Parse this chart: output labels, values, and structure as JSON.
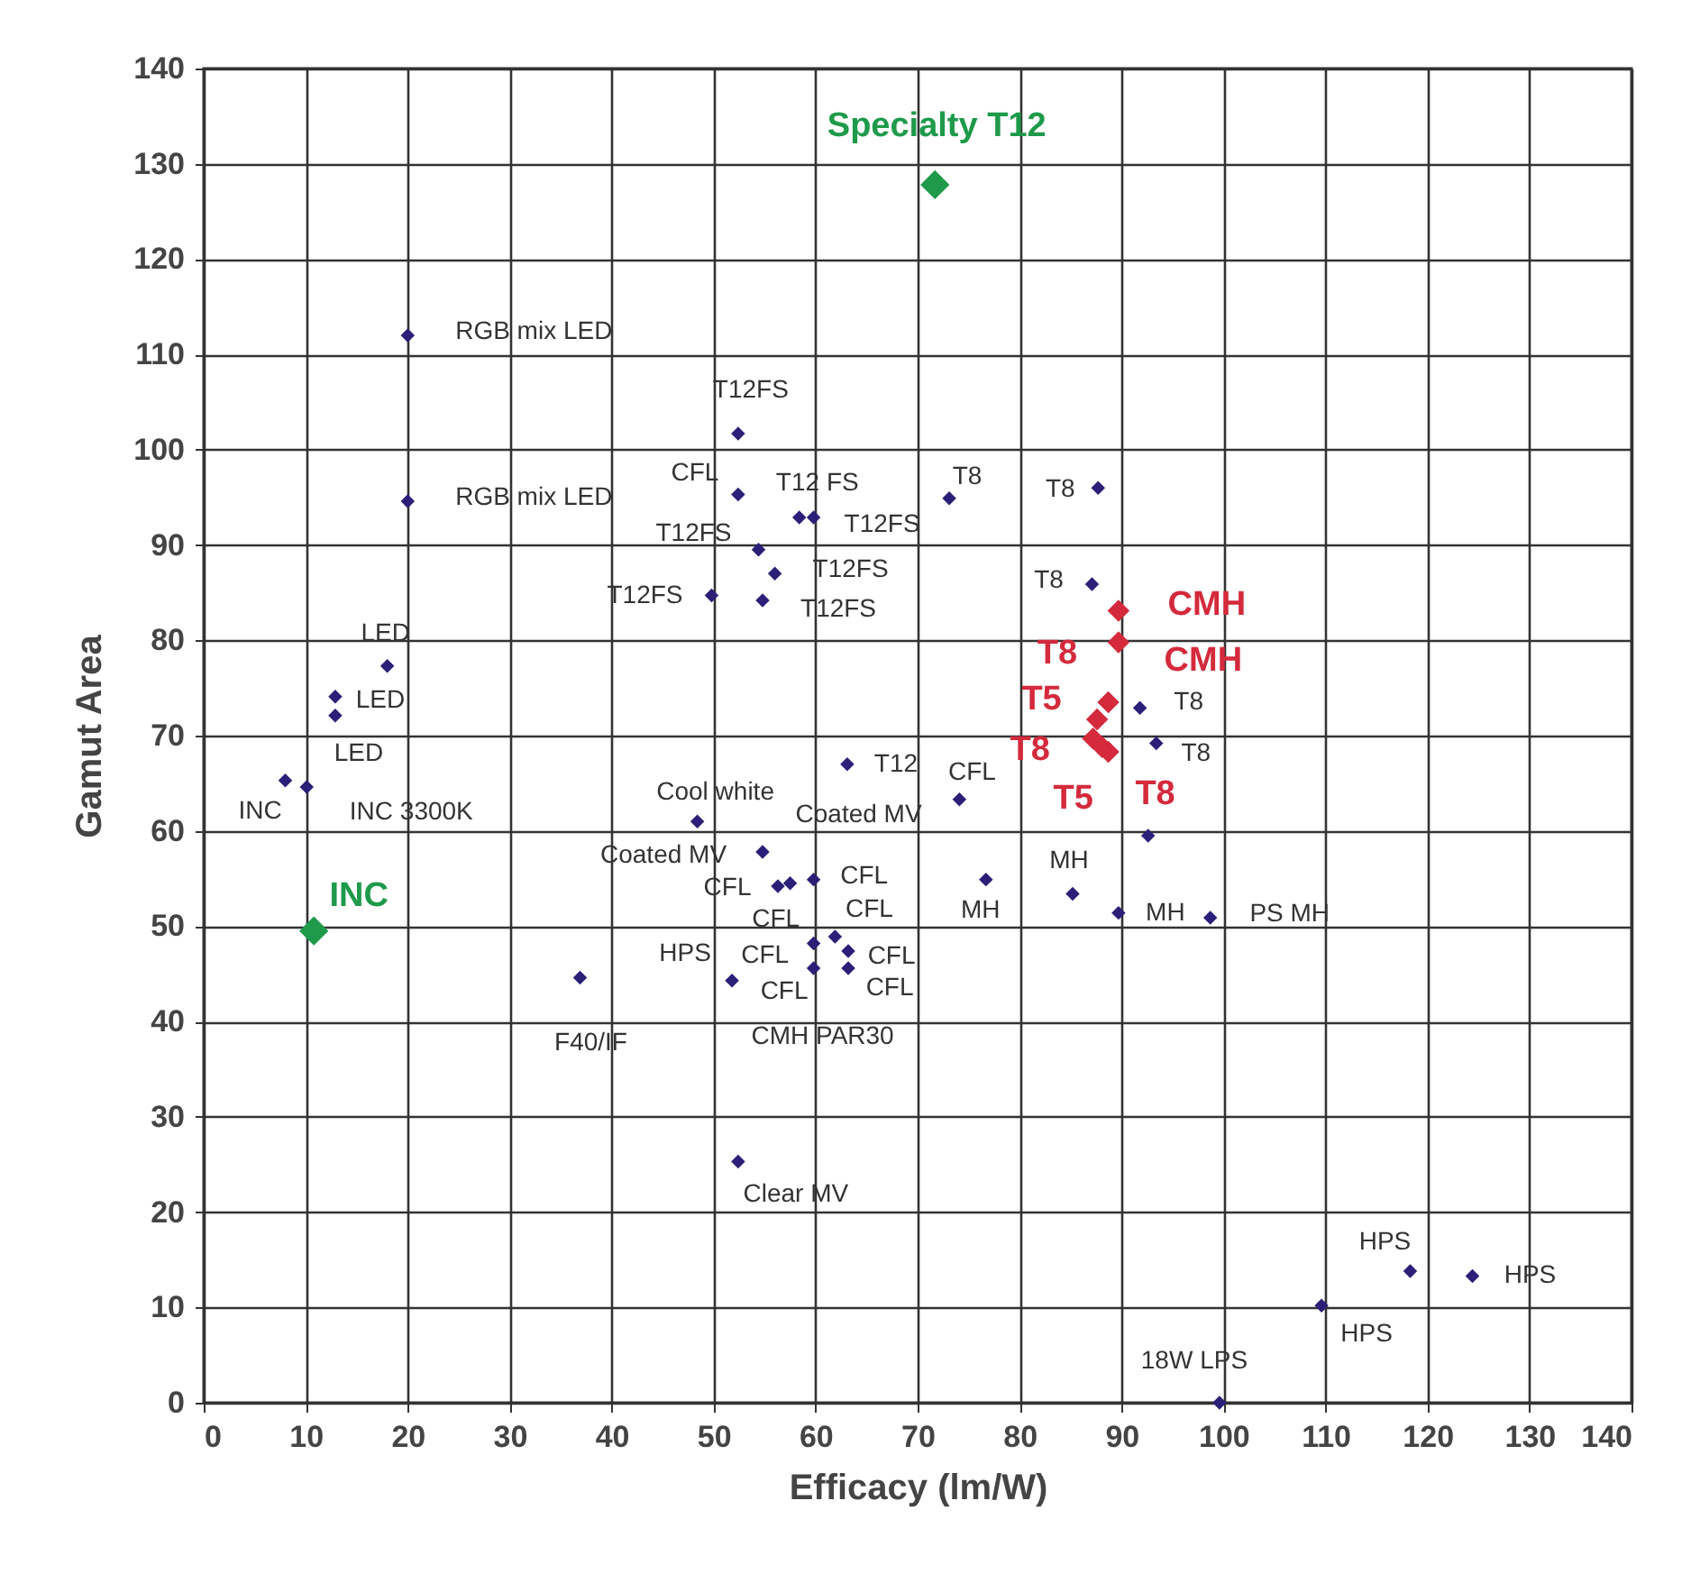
{
  "chart_data": {
    "type": "scatter",
    "xlabel": "Efficacy (lm/W)",
    "ylabel": "Gamut Area",
    "xlim": [
      0,
      140
    ],
    "ylim": [
      0,
      140
    ],
    "xticks": [
      0,
      10,
      20,
      30,
      40,
      50,
      60,
      70,
      80,
      90,
      100,
      110,
      120,
      130,
      140
    ],
    "yticks": [
      0,
      10,
      20,
      30,
      40,
      50,
      60,
      70,
      80,
      90,
      100,
      110,
      120,
      130,
      140
    ],
    "grid": true,
    "marker": "diamond",
    "series": [
      {
        "color": "#2b1f78",
        "x": [
          20,
          20,
          18,
          12.9,
          12.9,
          8,
          10.1,
          36.9,
          48.4,
          49.8,
          52.4,
          52.4,
          58.4,
          59.8,
          54.4,
          56,
          54.8,
          73.1,
          63.1,
          74.1,
          54.8,
          56.3,
          57.5,
          59.8,
          76.7,
          59.8,
          61.9,
          63.2,
          59.8,
          63.2,
          51.8,
          87.7,
          87.1,
          91.8,
          93.4,
          92.6,
          85.2,
          89.7,
          98.7,
          52.4,
          99.6,
          109.6,
          118.3,
          124.4
        ],
        "values": [
          112,
          94.6,
          77.3,
          74.1,
          72.1,
          65.3,
          64.6,
          44.6,
          61,
          84.7,
          101.7,
          95.3,
          92.9,
          92.9,
          89.5,
          87,
          84.2,
          94.9,
          67,
          63.3,
          57.8,
          54.2,
          54.5,
          54.9,
          54.9,
          48.2,
          48.9,
          47.4,
          45.6,
          45.6,
          44.3,
          96,
          85.9,
          72.9,
          69.2,
          59.5,
          53.4,
          51.4,
          50.9,
          25.3,
          0,
          10.2,
          13.8,
          13.3
        ]
      },
      {
        "color": "#d42a3c",
        "x": [
          89.7,
          89.7,
          88.7,
          87.6,
          87.2,
          88.1,
          88.7
        ],
        "values": [
          83.1,
          79.8,
          73.5,
          71.7,
          69.7,
          68.8,
          68.3
        ]
      },
      {
        "color": "#1e9a4a",
        "x": [
          10.8,
          71.7
        ],
        "values": [
          49.5,
          127.8
        ]
      }
    ],
    "annotations": [
      {
        "text": "RGB mix LED",
        "x": 20,
        "y": 112
      },
      {
        "text": "RGB mix LED",
        "x": 20,
        "y": 94.6
      },
      {
        "text": "LED",
        "x": 18,
        "y": 77.3
      },
      {
        "text": "LED",
        "x": 12.9,
        "y": 74.1
      },
      {
        "text": "LED",
        "x": 12.9,
        "y": 72.1
      },
      {
        "text": "INC",
        "x": 8,
        "y": 65.3
      },
      {
        "text": "INC 3300K",
        "x": 10.1,
        "y": 64.6
      },
      {
        "text": "T12FS",
        "x": 52.4,
        "y": 101.7
      },
      {
        "text": "CFL",
        "x": 52.4,
        "y": 95.3
      },
      {
        "text": "T12 FS",
        "x": 58.4,
        "y": 92.9
      },
      {
        "text": "T12FS",
        "x": 59.8,
        "y": 92.9
      },
      {
        "text": "T12FS",
        "x": 54.4,
        "y": 89.5
      },
      {
        "text": "T12FS",
        "x": 56,
        "y": 87
      },
      {
        "text": "T12FS",
        "x": 49.8,
        "y": 84.7
      },
      {
        "text": "T12FS",
        "x": 54.8,
        "y": 84.2
      },
      {
        "text": "T8",
        "x": 73.1,
        "y": 94.9
      },
      {
        "text": "T8",
        "x": 87.7,
        "y": 96
      },
      {
        "text": "T8",
        "x": 87.1,
        "y": 85.9
      },
      {
        "text": "T8",
        "x": 91.8,
        "y": 72.9
      },
      {
        "text": "T8",
        "x": 93.4,
        "y": 69.2
      },
      {
        "text": "T12",
        "x": 63.1,
        "y": 67
      },
      {
        "text": "CFL",
        "x": 74.1,
        "y": 63.3
      },
      {
        "text": "Cool white",
        "x": 48.4,
        "y": 61
      },
      {
        "text": "Coated MV",
        "x": 57.5,
        "y": 54.5
      },
      {
        "text": "Coated MV",
        "x": 54.8,
        "y": 57.8
      },
      {
        "text": "CFL",
        "x": 56.3,
        "y": 54.2
      },
      {
        "text": "CFL",
        "x": 59.8,
        "y": 54.9
      },
      {
        "text": "CFL",
        "x": 59.8,
        "y": 48.2
      },
      {
        "text": "CFL",
        "x": 61.9,
        "y": 48.9
      },
      {
        "text": "HPS",
        "x": 51.8,
        "y": 44.3
      },
      {
        "text": "CFL",
        "x": 59.8,
        "y": 45.6
      },
      {
        "text": "CFL",
        "x": 63.2,
        "y": 47.4
      },
      {
        "text": "CFL",
        "x": 51.8,
        "y": 44.3
      },
      {
        "text": "CFL",
        "x": 63.2,
        "y": 45.6
      },
      {
        "text": "CMH PAR30",
        "x": 59.8,
        "y": 45.6
      },
      {
        "text": "F40/IF",
        "x": 36.9,
        "y": 44.6
      },
      {
        "text": "Clear MV",
        "x": 52.4,
        "y": 25.3
      },
      {
        "text": "MH",
        "x": 76.7,
        "y": 54.9
      },
      {
        "text": "MH",
        "x": 85.2,
        "y": 53.4
      },
      {
        "text": "MH",
        "x": 89.7,
        "y": 51.4
      },
      {
        "text": "PS MH",
        "x": 98.7,
        "y": 50.9
      },
      {
        "text": "18W LPS",
        "x": 99.6,
        "y": 0
      },
      {
        "text": "HPS",
        "x": 109.6,
        "y": 10.2
      },
      {
        "text": "HPS",
        "x": 118.3,
        "y": 13.8
      },
      {
        "text": "HPS",
        "x": 124.4,
        "y": 13.3
      },
      {
        "text": "CMH",
        "x": 89.7,
        "y": 83.1
      },
      {
        "text": "CMH",
        "x": 89.7,
        "y": 79.8
      },
      {
        "text": "T8",
        "x": 89.7,
        "y": 79.8
      },
      {
        "text": "T5",
        "x": 88.7,
        "y": 73.5
      },
      {
        "text": "T8",
        "x": 87.2,
        "y": 69.7
      },
      {
        "text": "T5",
        "x": 88.1,
        "y": 68.8
      },
      {
        "text": "T8",
        "x": 88.7,
        "y": 68.3
      },
      {
        "text": "Specialty T12",
        "x": 71.7,
        "y": 127.8
      },
      {
        "text": "INC",
        "x": 10.8,
        "y": 49.5
      }
    ]
  }
}
